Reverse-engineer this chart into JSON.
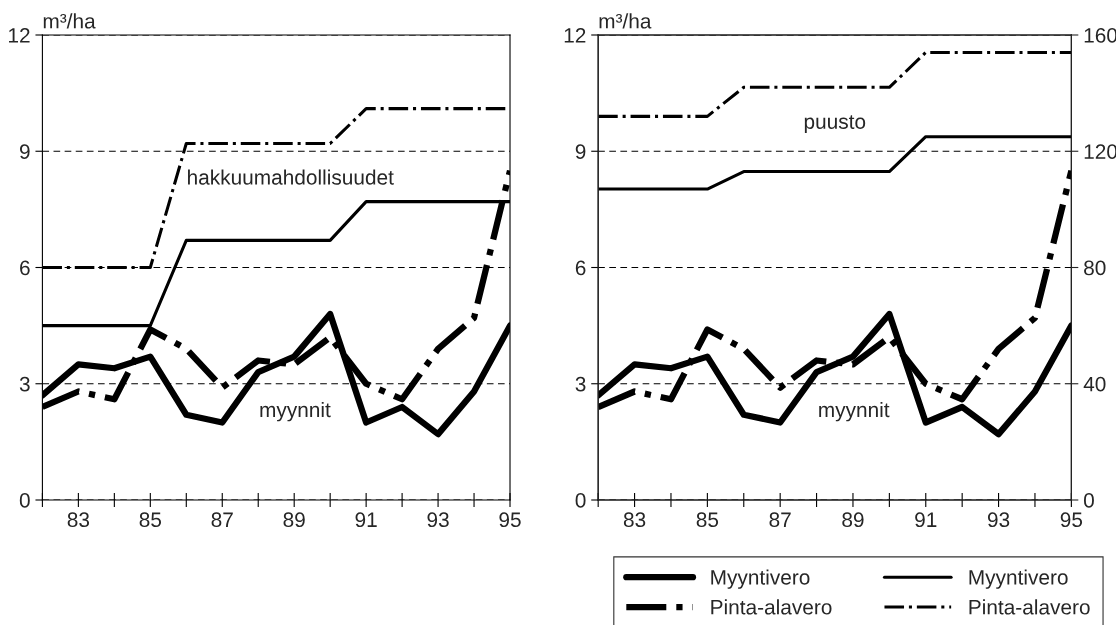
{
  "chart_data": [
    {
      "type": "line",
      "ylabel": "m³/ha",
      "x": [
        82,
        83,
        84,
        85,
        86,
        87,
        88,
        89,
        90,
        91,
        92,
        93,
        94,
        95
      ],
      "xlim": [
        82,
        95
      ],
      "xticks": [
        {
          "value": 82,
          "label": null
        },
        83,
        {
          "value": 84,
          "label": null
        },
        85,
        {
          "value": 86,
          "label": null
        },
        87,
        {
          "value": 88,
          "label": null
        },
        89,
        {
          "value": 90,
          "label": null
        },
        91,
        {
          "value": 92,
          "label": null
        },
        93,
        {
          "value": 94,
          "label": null
        },
        95
      ],
      "ylim": [
        0,
        12
      ],
      "yticks": [
        0,
        3,
        6,
        9,
        12
      ],
      "grid": "y",
      "legend": false,
      "series": [
        {
          "color": "#000000",
          "line_style": "solid",
          "values": [
            2.7,
            3.5,
            3.4,
            3.7,
            2.2,
            2.0,
            3.3,
            3.7,
            4.8,
            2.0,
            2.4,
            1.7,
            2.8,
            4.5
          ]
        },
        {
          "color": "#000000",
          "line_style": "dashdot",
          "values": [
            2.4,
            2.8,
            2.6,
            4.4,
            3.9,
            2.9,
            3.6,
            3.5,
            4.2,
            3.0,
            2.6,
            3.9,
            4.7,
            8.5
          ]
        },
        {
          "color": "#000000",
          "line_style": "solid",
          "values": [
            4.5,
            4.5,
            4.5,
            4.5,
            6.7,
            6.7,
            6.7,
            6.7,
            6.7,
            7.7,
            7.7,
            7.7,
            7.7,
            7.7
          ]
        },
        {
          "color": "#000000",
          "line_style": "dashdot",
          "values": [
            6.0,
            6.0,
            6.0,
            6.0,
            9.2,
            9.2,
            9.2,
            9.2,
            9.2,
            10.1,
            10.1,
            10.1,
            10.1,
            10.1
          ]
        }
      ],
      "annotations": [
        "hakkuumahdollisuudet",
        "myynnit"
      ]
    },
    {
      "type": "line",
      "ylabel": "m³/ha",
      "x": [
        82,
        83,
        84,
        85,
        86,
        87,
        88,
        89,
        90,
        91,
        92,
        93,
        94,
        95
      ],
      "xlim": [
        82,
        95
      ],
      "xticks": [
        {
          "value": 82,
          "label": null
        },
        83,
        {
          "value": 84,
          "label": null
        },
        85,
        {
          "value": 86,
          "label": null
        },
        87,
        {
          "value": 88,
          "label": null
        },
        89,
        {
          "value": 90,
          "label": null
        },
        91,
        {
          "value": 92,
          "label": null
        },
        93,
        {
          "value": 94,
          "label": null
        },
        95
      ],
      "ylim": [
        0,
        12
      ],
      "yticks": [
        0,
        3,
        6,
        9,
        12
      ],
      "y2lim": [
        0,
        160
      ],
      "y2ticks": [
        0,
        40,
        80,
        120,
        160
      ],
      "grid": "y",
      "legend": "bottom",
      "series": [
        {
          "name": "Myyntivero",
          "color": "#000000",
          "line_style": "solid",
          "values": [
            2.7,
            3.5,
            3.4,
            3.7,
            2.2,
            2.0,
            3.3,
            3.7,
            4.8,
            2.0,
            2.4,
            1.7,
            2.8,
            4.5
          ]
        },
        {
          "name": "Pinta-alavero",
          "color": "#000000",
          "line_style": "dashdot",
          "values": [
            2.4,
            2.8,
            2.6,
            4.4,
            3.9,
            2.9,
            3.6,
            3.5,
            4.2,
            3.0,
            2.6,
            3.9,
            4.7,
            8.5
          ]
        },
        {
          "name": "Myyntivero",
          "color": "#000000",
          "line_style": "solid",
          "axis": "y2",
          "values": [
            107,
            107,
            107,
            107,
            113,
            113,
            113,
            113,
            113,
            125,
            125,
            125,
            125,
            125
          ]
        },
        {
          "name": "Pinta-alavero",
          "color": "#000000",
          "line_style": "dashdot",
          "axis": "y2",
          "values": [
            132,
            132,
            132,
            132,
            142,
            142,
            142,
            142,
            142,
            154,
            154,
            154,
            154,
            154
          ]
        }
      ],
      "annotations": [
        "puusto",
        "myynnit"
      ]
    }
  ]
}
